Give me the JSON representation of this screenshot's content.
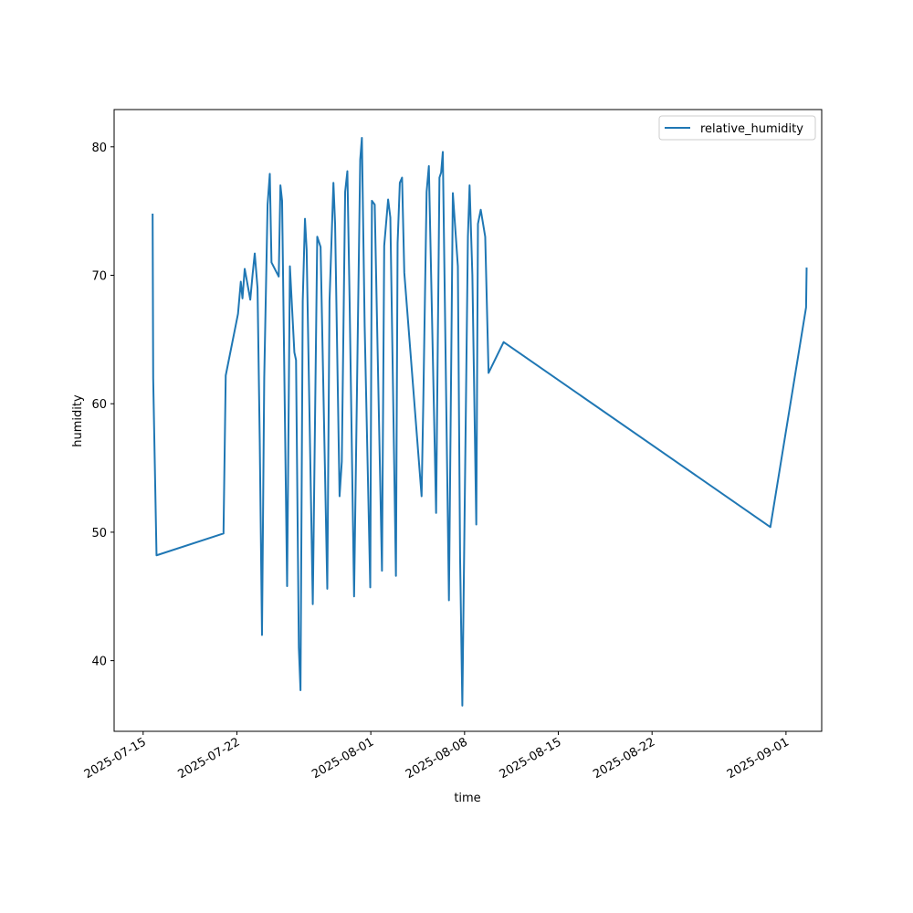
{
  "chart_data": {
    "type": "line",
    "xlabel": "time",
    "ylabel": "humidity",
    "xlim": [
      "2025-07-12T20:00",
      "2025-09-03T16:00"
    ],
    "ylim": [
      34.5,
      82.9
    ],
    "y_ticks": [
      40,
      50,
      60,
      70,
      80
    ],
    "x_ticks": [
      "2025-07-15",
      "2025-07-22",
      "2025-08-01",
      "2025-08-08",
      "2025-08-15",
      "2025-08-22",
      "2025-09-01"
    ],
    "grid": false,
    "legend": {
      "position": "top-right",
      "entries": [
        "relative_humidity"
      ]
    },
    "colors": {
      "series": "#1f77b4"
    },
    "series": [
      {
        "name": "relative_humidity",
        "points": [
          [
            "2025-07-15T17:00",
            74.8
          ],
          [
            "2025-07-15T18:00",
            62.0
          ],
          [
            "2025-07-16T00:00",
            48.2
          ],
          [
            "2025-07-21T00:00",
            49.9
          ],
          [
            "2025-07-21T04:00",
            62.2
          ],
          [
            "2025-07-22T02:00",
            67.0
          ],
          [
            "2025-07-22T07:00",
            69.5
          ],
          [
            "2025-07-22T10:00",
            68.2
          ],
          [
            "2025-07-22T14:00",
            70.5
          ],
          [
            "2025-07-23T00:00",
            68.1
          ],
          [
            "2025-07-23T04:00",
            70.0
          ],
          [
            "2025-07-23T08:00",
            71.7
          ],
          [
            "2025-07-23T13:00",
            69.0
          ],
          [
            "2025-07-23T17:00",
            57.0
          ],
          [
            "2025-07-23T21:00",
            42.0
          ],
          [
            "2025-07-24T01:00",
            62.0
          ],
          [
            "2025-07-24T07:00",
            75.5
          ],
          [
            "2025-07-24T11:00",
            77.9
          ],
          [
            "2025-07-24T14:00",
            71.0
          ],
          [
            "2025-07-25T03:00",
            69.9
          ],
          [
            "2025-07-25T06:00",
            77.0
          ],
          [
            "2025-07-25T09:00",
            75.8
          ],
          [
            "2025-07-25T18:00",
            45.8
          ],
          [
            "2025-07-25T23:00",
            70.7
          ],
          [
            "2025-07-26T07:00",
            64.0
          ],
          [
            "2025-07-26T10:00",
            63.4
          ],
          [
            "2025-07-26T15:00",
            41.0
          ],
          [
            "2025-07-26T18:00",
            37.7
          ],
          [
            "2025-07-26T22:00",
            68.0
          ],
          [
            "2025-07-27T02:00",
            74.4
          ],
          [
            "2025-07-27T05:00",
            72.0
          ],
          [
            "2025-07-27T16:00",
            44.4
          ],
          [
            "2025-07-28T00:00",
            73.0
          ],
          [
            "2025-07-28T06:00",
            72.2
          ],
          [
            "2025-07-28T18:00",
            45.6
          ],
          [
            "2025-07-28T22:00",
            68.0
          ],
          [
            "2025-07-29T05:00",
            77.2
          ],
          [
            "2025-07-29T08:00",
            74.0
          ],
          [
            "2025-07-29T16:00",
            52.8
          ],
          [
            "2025-07-29T20:00",
            55.5
          ],
          [
            "2025-07-30T02:00",
            76.5
          ],
          [
            "2025-07-30T06:00",
            78.1
          ],
          [
            "2025-07-30T10:00",
            68.0
          ],
          [
            "2025-07-30T18:00",
            45.0
          ],
          [
            "2025-07-31T05:00",
            79.0
          ],
          [
            "2025-07-31T08:00",
            80.7
          ],
          [
            "2025-07-31T13:00",
            66.0
          ],
          [
            "2025-07-31T23:00",
            45.7
          ],
          [
            "2025-08-01T02:00",
            75.8
          ],
          [
            "2025-08-01T07:00",
            75.5
          ],
          [
            "2025-08-01T20:00",
            47.0
          ],
          [
            "2025-08-02T00:00",
            72.3
          ],
          [
            "2025-08-02T07:00",
            75.9
          ],
          [
            "2025-08-02T11:00",
            74.5
          ],
          [
            "2025-08-02T21:00",
            46.6
          ],
          [
            "2025-08-03T00:00",
            72.5
          ],
          [
            "2025-08-03T04:00",
            77.2
          ],
          [
            "2025-08-03T08:00",
            77.6
          ],
          [
            "2025-08-03T12:00",
            70.2
          ],
          [
            "2025-08-04T19:00",
            52.8
          ],
          [
            "2025-08-04T22:00",
            60.0
          ],
          [
            "2025-08-05T04:00",
            76.5
          ],
          [
            "2025-08-05T08:00",
            78.5
          ],
          [
            "2025-08-05T21:00",
            51.5
          ],
          [
            "2025-08-06T03:00",
            77.6
          ],
          [
            "2025-08-06T06:00",
            78.0
          ],
          [
            "2025-08-06T09:00",
            79.6
          ],
          [
            "2025-08-06T20:00",
            44.7
          ],
          [
            "2025-08-07T03:00",
            76.4
          ],
          [
            "2025-08-07T12:00",
            70.7
          ],
          [
            "2025-08-07T16:00",
            48.0
          ],
          [
            "2025-08-07T20:00",
            36.5
          ],
          [
            "2025-08-08T06:00",
            73.0
          ],
          [
            "2025-08-08T09:00",
            77.0
          ],
          [
            "2025-08-08T14:00",
            70.0
          ],
          [
            "2025-08-08T21:00",
            50.6
          ],
          [
            "2025-08-09T00:00",
            74.0
          ],
          [
            "2025-08-09T05:00",
            75.1
          ],
          [
            "2025-08-09T13:00",
            73.0
          ],
          [
            "2025-08-09T19:00",
            62.4
          ],
          [
            "2025-08-10T22:00",
            64.8
          ],
          [
            "2025-08-30T20:00",
            50.4
          ],
          [
            "2025-09-02T12:00",
            67.5
          ],
          [
            "2025-09-02T13:00",
            70.6
          ]
        ]
      }
    ]
  }
}
